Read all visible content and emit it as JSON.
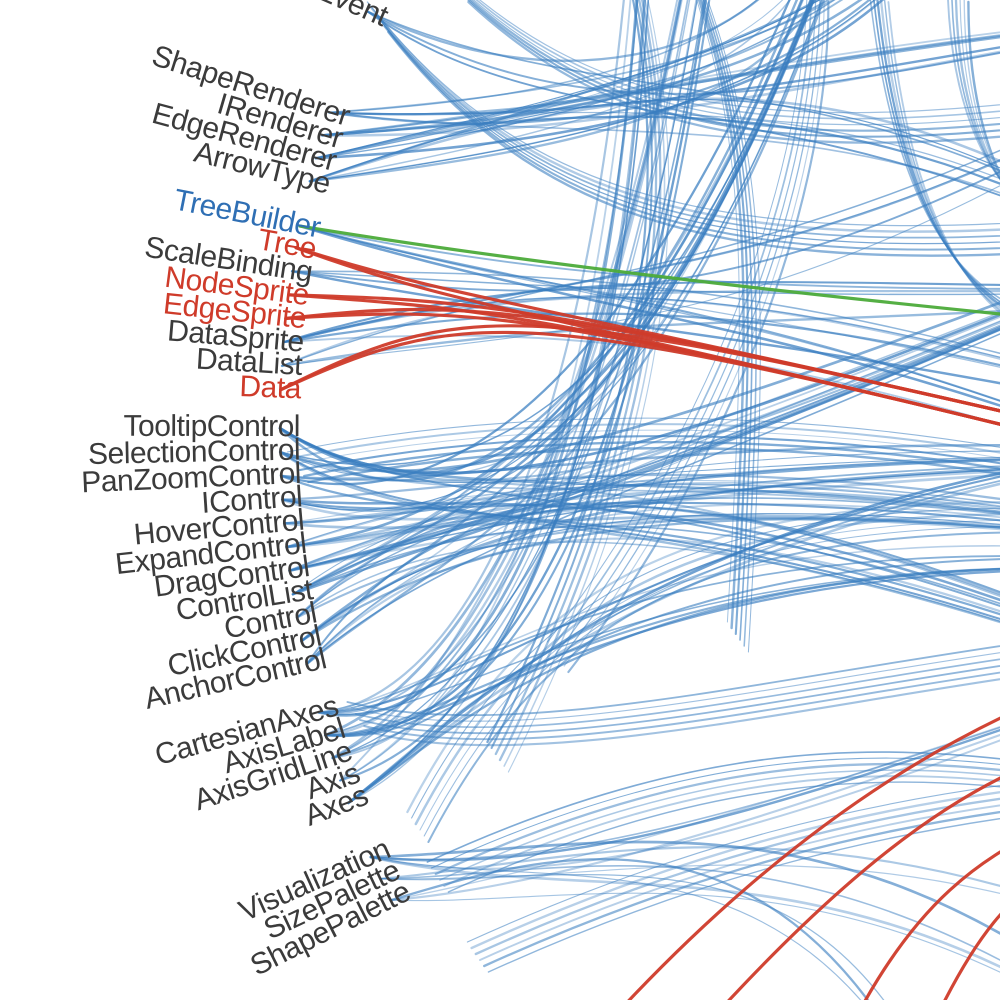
{
  "colors": {
    "link": "#3a7ec0",
    "source": "#2f6fb4",
    "target": "#cf3b2a",
    "highlight": "#4cab3a",
    "default_label": "#3b3b3b"
  },
  "nodes": [
    {
      "label": "DataEvent",
      "status": "default"
    },
    {
      "label": "ShapeRenderer",
      "status": "default"
    },
    {
      "label": "IRenderer",
      "status": "default"
    },
    {
      "label": "EdgeRenderer",
      "status": "default"
    },
    {
      "label": "ArrowType",
      "status": "default"
    },
    {
      "label": "TreeBuilder",
      "status": "source"
    },
    {
      "label": "Tree",
      "status": "target"
    },
    {
      "label": "ScaleBinding",
      "status": "default"
    },
    {
      "label": "NodeSprite",
      "status": "target"
    },
    {
      "label": "EdgeSprite",
      "status": "target"
    },
    {
      "label": "DataSprite",
      "status": "default"
    },
    {
      "label": "DataList",
      "status": "default"
    },
    {
      "label": "Data",
      "status": "target"
    },
    {
      "label": "TooltipControl",
      "status": "default"
    },
    {
      "label": "SelectionControl",
      "status": "default"
    },
    {
      "label": "PanZoomControl",
      "status": "default"
    },
    {
      "label": "IControl",
      "status": "default"
    },
    {
      "label": "HoverControl",
      "status": "default"
    },
    {
      "label": "ExpandControl",
      "status": "default"
    },
    {
      "label": "DragControl",
      "status": "default"
    },
    {
      "label": "ControlList",
      "status": "default"
    },
    {
      "label": "Control",
      "status": "default"
    },
    {
      "label": "ClickControl",
      "status": "default"
    },
    {
      "label": "AnchorControl",
      "status": "default"
    },
    {
      "label": "CartesianAxes",
      "status": "default"
    },
    {
      "label": "AxisLabel",
      "status": "default"
    },
    {
      "label": "AxisGridLine",
      "status": "default"
    },
    {
      "label": "Axis",
      "status": "default"
    },
    {
      "label": "Axes",
      "status": "default"
    },
    {
      "label": "Visualization",
      "status": "default"
    },
    {
      "label": "SizePalette",
      "status": "default"
    },
    {
      "label": "ShapePalette",
      "status": "default"
    }
  ]
}
